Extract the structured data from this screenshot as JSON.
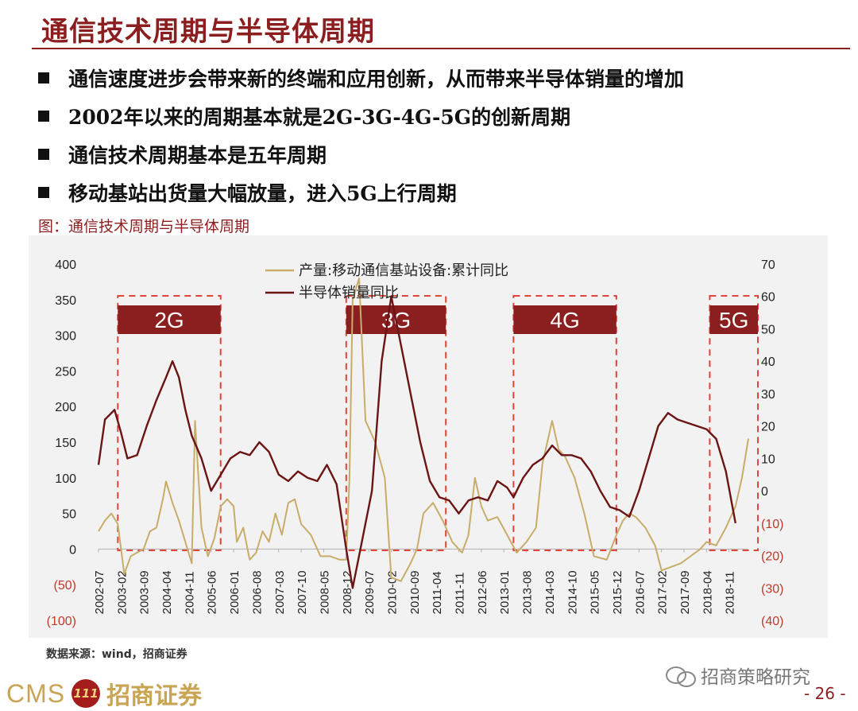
{
  "slide": {
    "title": "通信技术周期与半导体周期",
    "bullets": [
      "通信速度进步会带来新的终端和应用创新，从而带来半导体销量的增加",
      "2002年以来的周期基本就是2G-3G-4G-5G的创新周期",
      "通信技术周期基本是五年周期",
      "移动基站出货量大幅放量，进入5G上行周期"
    ],
    "figure_caption": "图：通信技术周期与半导体周期",
    "source": "数据来源：wind，招商证券",
    "watermark": "招商策略研究",
    "page_number": "- 26 -",
    "logo_text": "CMS",
    "logo_cn": "招商证券",
    "logo_mark": "111"
  },
  "colors": {
    "accent": "#8b1f1f",
    "series_base_station": "#c8ad6a",
    "series_semiconductor": "#6b1414",
    "box_dash": "#e0443a",
    "label_fill": "#8b1f1f"
  },
  "chart_data": {
    "type": "line",
    "x_tick_labels": [
      "2002-07",
      "2003-02",
      "2003-09",
      "2004-04",
      "2004-11",
      "2005-06",
      "2006-01",
      "2006-08",
      "2007-03",
      "2007-10",
      "2008-05",
      "2008-12",
      "2009-07",
      "2010-02",
      "2010-09",
      "2011-04",
      "2011-11",
      "2012-06",
      "2013-01",
      "2013-08",
      "2014-03",
      "2014-10",
      "2015-05",
      "2015-12",
      "2016-07",
      "2017-02",
      "2017-09",
      "2018-04",
      "2018-11"
    ],
    "y_left": {
      "ticks": [
        "400",
        "350",
        "300",
        "250",
        "200",
        "150",
        "100",
        "50",
        "0",
        "(50)",
        "(100)"
      ],
      "min": -100,
      "max": 400
    },
    "y_right": {
      "ticks": [
        "70",
        "60",
        "50",
        "40",
        "30",
        "20",
        "10",
        "0",
        "(10)",
        "(20)",
        "(30)",
        "(40)"
      ],
      "min": -40,
      "max": 70
    },
    "legend": [
      "产量:移动通信基站设备:累计同比",
      "半导体销量同比"
    ],
    "phases": [
      {
        "label": "2G",
        "start": "2003-01",
        "end": "2005-06"
      },
      {
        "label": "3G",
        "start": "2008-12",
        "end": "2011-04"
      },
      {
        "label": "4G",
        "start": "2013-04",
        "end": "2015-09"
      },
      {
        "label": "5G",
        "start": "2018-05",
        "end": "2019-05"
      }
    ],
    "series": [
      {
        "name": "产量:移动通信基站设备:累计同比",
        "axis": "left",
        "points": [
          [
            "2002-07",
            25
          ],
          [
            "2002-09",
            40
          ],
          [
            "2002-11",
            50
          ],
          [
            "2003-01",
            35
          ],
          [
            "2003-03",
            -35
          ],
          [
            "2003-05",
            -10
          ],
          [
            "2003-07",
            -5
          ],
          [
            "2003-09",
            0
          ],
          [
            "2003-11",
            25
          ],
          [
            "2004-01",
            30
          ],
          [
            "2004-03",
            70
          ],
          [
            "2004-04",
            95
          ],
          [
            "2004-06",
            65
          ],
          [
            "2004-08",
            40
          ],
          [
            "2004-10",
            10
          ],
          [
            "2004-12",
            -20
          ],
          [
            "2005-01",
            180
          ],
          [
            "2005-03",
            30
          ],
          [
            "2005-05",
            -10
          ],
          [
            "2005-07",
            15
          ],
          [
            "2005-09",
            60
          ],
          [
            "2005-11",
            70
          ],
          [
            "2006-01",
            60
          ],
          [
            "2006-02",
            10
          ],
          [
            "2006-04",
            30
          ],
          [
            "2006-06",
            -15
          ],
          [
            "2006-08",
            -5
          ],
          [
            "2006-10",
            25
          ],
          [
            "2006-12",
            10
          ],
          [
            "2007-02",
            50
          ],
          [
            "2007-04",
            20
          ],
          [
            "2007-06",
            65
          ],
          [
            "2007-08",
            70
          ],
          [
            "2007-10",
            35
          ],
          [
            "2008-01",
            20
          ],
          [
            "2008-04",
            -10
          ],
          [
            "2008-07",
            -10
          ],
          [
            "2008-10",
            -15
          ],
          [
            "2008-12",
            -15
          ],
          [
            "2009-01",
            100
          ],
          [
            "2009-02",
            350
          ],
          [
            "2009-04",
            380
          ],
          [
            "2009-06",
            180
          ],
          [
            "2009-09",
            150
          ],
          [
            "2009-12",
            100
          ],
          [
            "2010-02",
            -40
          ],
          [
            "2010-05",
            -45
          ],
          [
            "2010-08",
            -20
          ],
          [
            "2010-10",
            0
          ],
          [
            "2010-12",
            50
          ],
          [
            "2011-03",
            65
          ],
          [
            "2011-06",
            40
          ],
          [
            "2011-09",
            10
          ],
          [
            "2011-12",
            -5
          ],
          [
            "2012-02",
            20
          ],
          [
            "2012-04",
            100
          ],
          [
            "2012-06",
            60
          ],
          [
            "2012-08",
            40
          ],
          [
            "2012-11",
            45
          ],
          [
            "2013-02",
            20
          ],
          [
            "2013-05",
            -5
          ],
          [
            "2013-08",
            10
          ],
          [
            "2013-11",
            30
          ],
          [
            "2014-01",
            120
          ],
          [
            "2014-04",
            180
          ],
          [
            "2014-06",
            140
          ],
          [
            "2014-08",
            130
          ],
          [
            "2014-11",
            100
          ],
          [
            "2015-02",
            50
          ],
          [
            "2015-05",
            -10
          ],
          [
            "2015-09",
            -15
          ],
          [
            "2015-12",
            20
          ],
          [
            "2016-02",
            40
          ],
          [
            "2016-04",
            50
          ],
          [
            "2016-06",
            45
          ],
          [
            "2016-09",
            30
          ],
          [
            "2016-12",
            5
          ],
          [
            "2017-02",
            -30
          ],
          [
            "2017-05",
            -25
          ],
          [
            "2017-08",
            -20
          ],
          [
            "2017-11",
            -10
          ],
          [
            "2018-02",
            0
          ],
          [
            "2018-04",
            10
          ],
          [
            "2018-07",
            5
          ],
          [
            "2018-10",
            30
          ],
          [
            "2019-01",
            60
          ],
          [
            "2019-03",
            100
          ],
          [
            "2019-05",
            155
          ]
        ]
      },
      {
        "name": "半导体销量同比",
        "axis": "right",
        "points": [
          [
            "2002-07",
            8
          ],
          [
            "2002-09",
            22
          ],
          [
            "2002-12",
            25
          ],
          [
            "2003-02",
            18
          ],
          [
            "2003-04",
            10
          ],
          [
            "2003-07",
            11
          ],
          [
            "2003-10",
            20
          ],
          [
            "2004-01",
            28
          ],
          [
            "2004-04",
            35
          ],
          [
            "2004-06",
            40
          ],
          [
            "2004-08",
            35
          ],
          [
            "2004-10",
            25
          ],
          [
            "2004-12",
            17
          ],
          [
            "2005-03",
            10
          ],
          [
            "2005-06",
            0
          ],
          [
            "2005-09",
            5
          ],
          [
            "2005-12",
            10
          ],
          [
            "2006-03",
            12
          ],
          [
            "2006-06",
            11
          ],
          [
            "2006-09",
            15
          ],
          [
            "2006-12",
            12
          ],
          [
            "2007-03",
            5
          ],
          [
            "2007-06",
            3
          ],
          [
            "2007-09",
            6
          ],
          [
            "2007-12",
            4
          ],
          [
            "2008-03",
            3
          ],
          [
            "2008-06",
            8
          ],
          [
            "2008-09",
            2
          ],
          [
            "2008-12",
            -18
          ],
          [
            "2009-02",
            -30
          ],
          [
            "2009-05",
            -15
          ],
          [
            "2009-08",
            0
          ],
          [
            "2009-11",
            40
          ],
          [
            "2010-02",
            60
          ],
          [
            "2010-05",
            45
          ],
          [
            "2010-08",
            30
          ],
          [
            "2010-11",
            15
          ],
          [
            "2011-02",
            3
          ],
          [
            "2011-05",
            -2
          ],
          [
            "2011-08",
            -3
          ],
          [
            "2011-11",
            -7
          ],
          [
            "2012-02",
            -3
          ],
          [
            "2012-05",
            -2
          ],
          [
            "2012-08",
            -3
          ],
          [
            "2012-11",
            3
          ],
          [
            "2013-02",
            1
          ],
          [
            "2013-04",
            -2
          ],
          [
            "2013-07",
            4
          ],
          [
            "2013-10",
            8
          ],
          [
            "2014-01",
            10
          ],
          [
            "2014-04",
            14
          ],
          [
            "2014-07",
            11
          ],
          [
            "2014-10",
            11
          ],
          [
            "2015-01",
            10
          ],
          [
            "2015-04",
            6
          ],
          [
            "2015-07",
            0
          ],
          [
            "2015-10",
            -5
          ],
          [
            "2016-01",
            -6
          ],
          [
            "2016-04",
            -8
          ],
          [
            "2016-07",
            0
          ],
          [
            "2016-10",
            10
          ],
          [
            "2017-01",
            20
          ],
          [
            "2017-04",
            24
          ],
          [
            "2017-07",
            22
          ],
          [
            "2017-10",
            21
          ],
          [
            "2018-01",
            20
          ],
          [
            "2018-04",
            19
          ],
          [
            "2018-07",
            16
          ],
          [
            "2018-10",
            6
          ],
          [
            "2019-01",
            -10
          ]
        ]
      }
    ]
  }
}
